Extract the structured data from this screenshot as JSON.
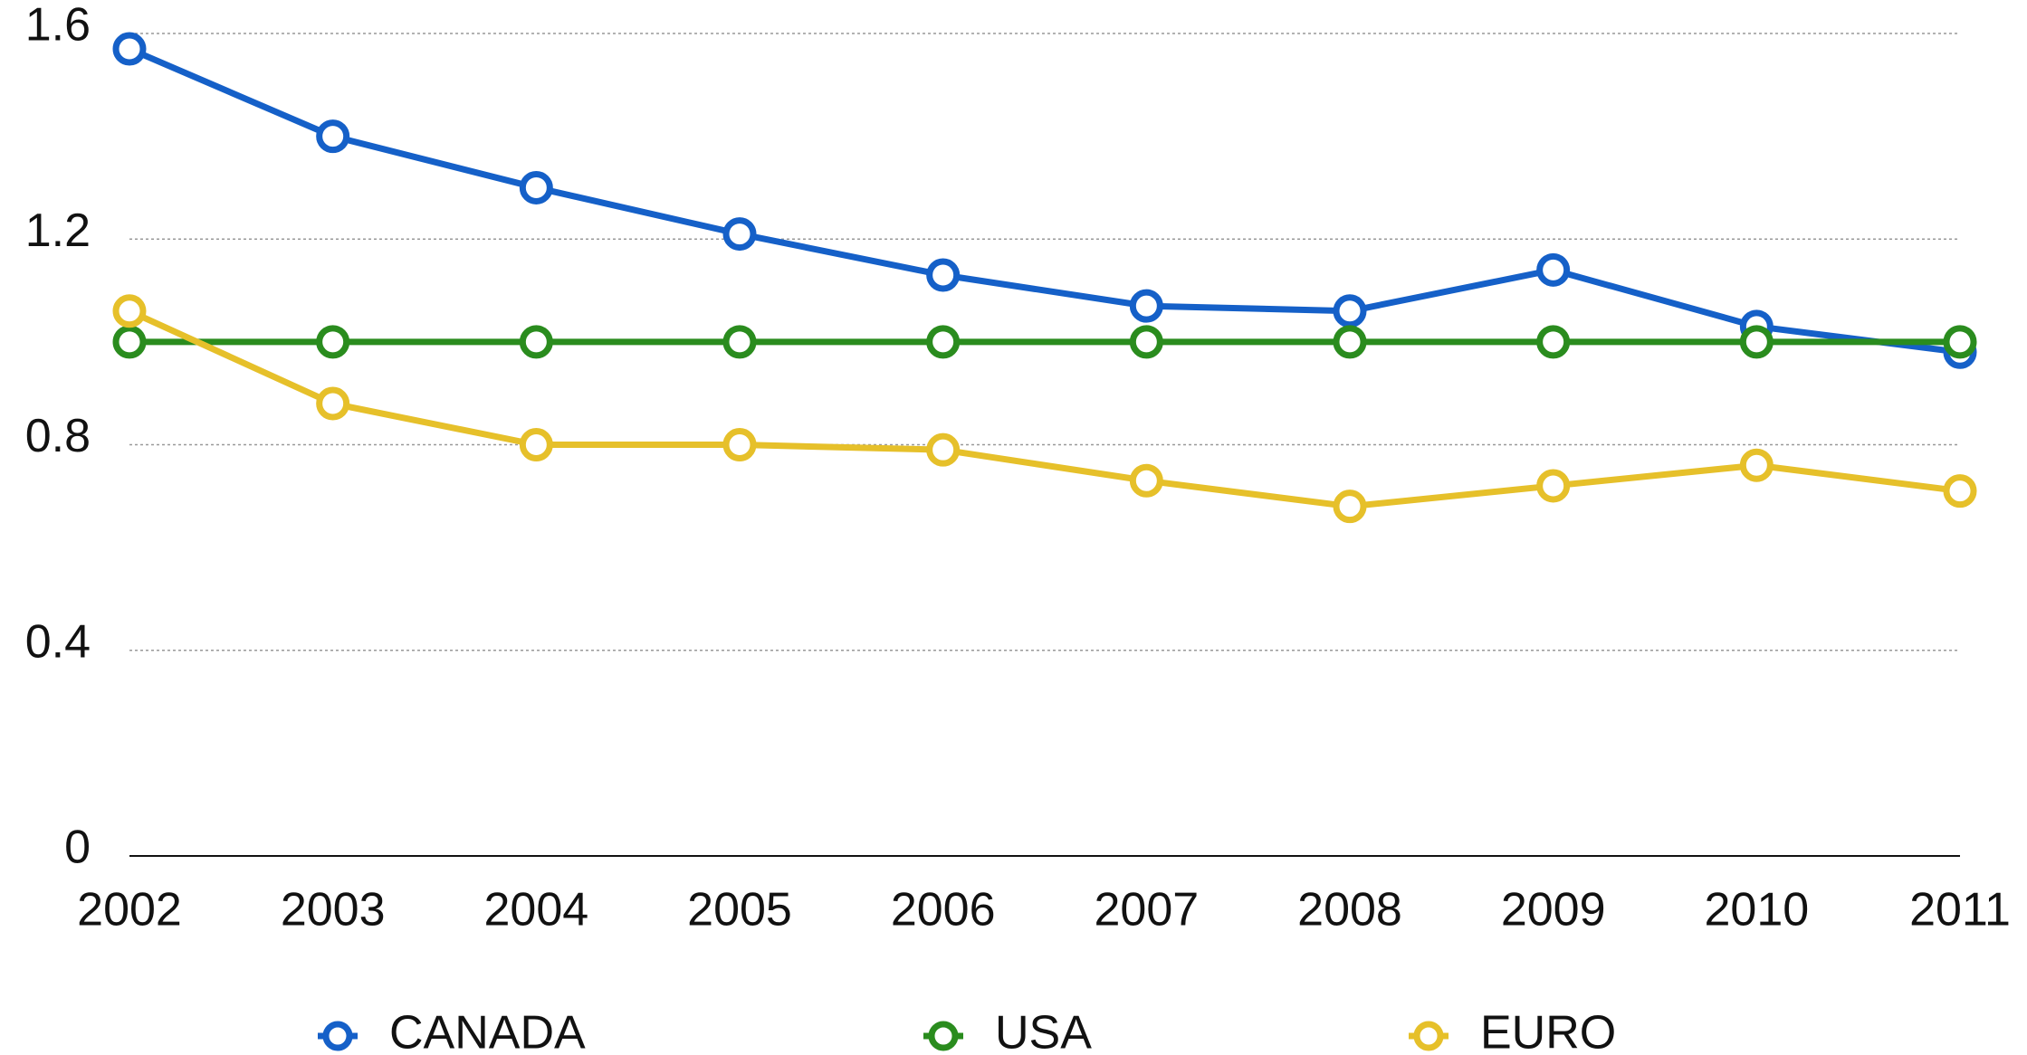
{
  "chart_data": {
    "type": "line",
    "categories": [
      "2002",
      "2003",
      "2004",
      "2005",
      "2006",
      "2007",
      "2008",
      "2009",
      "2010",
      "2011"
    ],
    "series": [
      {
        "name": "CANADA",
        "color": "#1560c8",
        "values": [
          1.57,
          1.4,
          1.3,
          1.21,
          1.13,
          1.07,
          1.06,
          1.14,
          1.03,
          0.98
        ]
      },
      {
        "name": "USA",
        "color": "#2a8c1e",
        "values": [
          1.0,
          1.0,
          1.0,
          1.0,
          1.0,
          1.0,
          1.0,
          1.0,
          1.0,
          1.0
        ]
      },
      {
        "name": "EURO",
        "color": "#e6c02a",
        "values": [
          1.06,
          0.88,
          0.8,
          0.8,
          0.79,
          0.73,
          0.68,
          0.72,
          0.76,
          0.71
        ]
      }
    ],
    "ylim": [
      0,
      1.6
    ],
    "yticks": [
      0,
      0.4,
      0.8,
      1.2,
      1.6
    ],
    "grid": true,
    "legend": "bottom"
  }
}
